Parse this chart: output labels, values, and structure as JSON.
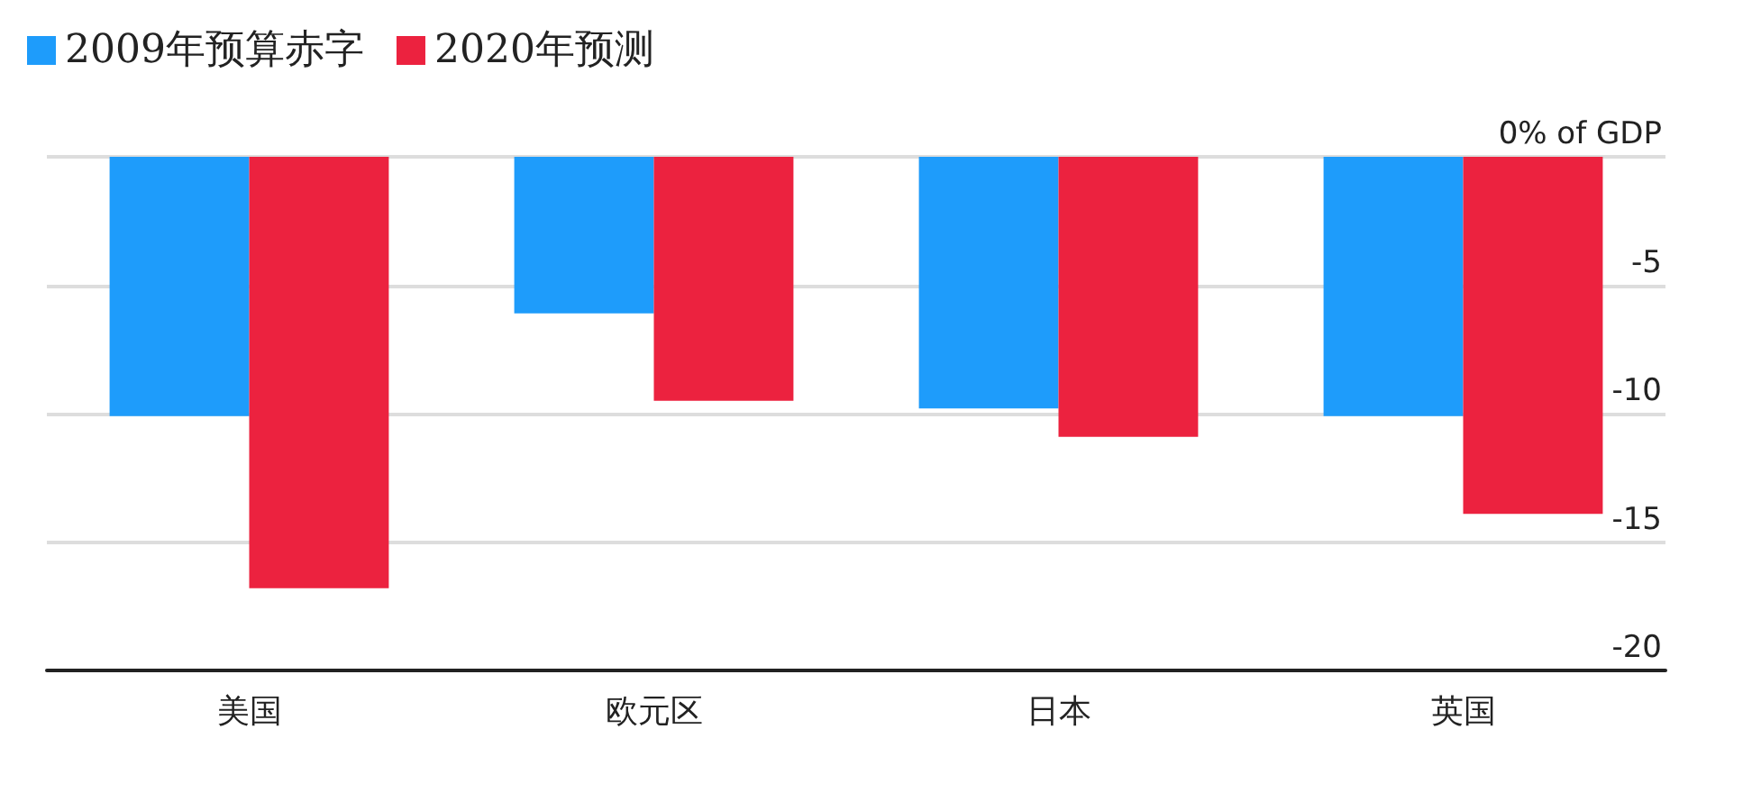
{
  "chart_data": {
    "type": "bar",
    "categories": [
      "美国",
      "欧元区",
      "日本",
      "英国"
    ],
    "series": [
      {
        "name": "2009年预算赤字",
        "color": "#1e9cfb",
        "values": [
          -10.1,
          -6.1,
          -9.8,
          -10.1
        ]
      },
      {
        "name": "2020年预测",
        "color": "#ec223f",
        "values": [
          -16.8,
          -9.5,
          -10.9,
          -13.9
        ]
      }
    ],
    "ylim": [
      -20,
      0
    ],
    "yticks": [
      {
        "value": 0,
        "label": "0% of GDP"
      },
      -5,
      -10,
      -15,
      -20
    ],
    "grid": "y",
    "legend": "top left"
  }
}
